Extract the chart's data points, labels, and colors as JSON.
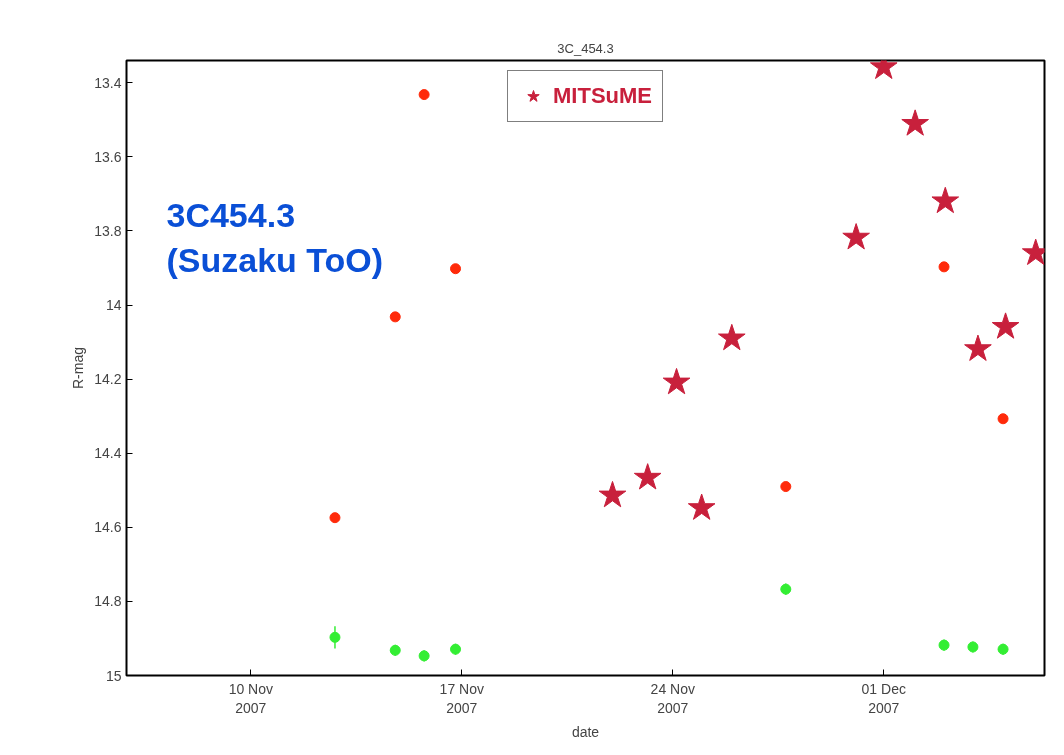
{
  "chart_data": {
    "type": "scatter",
    "title": "3C_454.3",
    "xlabel": "date",
    "ylabel": "R-mag",
    "annotations": [
      "3C454.3\n(Suzaku ToO)"
    ],
    "xlim": [
      "2007-11-05T21:00",
      "2007-12-06T08:00"
    ],
    "ylim": [
      15,
      13.34
    ],
    "xticks": [
      {
        "value": "2007-11-10",
        "label": "10 Nov\n2007"
      },
      {
        "value": "2007-11-17",
        "label": "17 Nov\n2007"
      },
      {
        "value": "2007-11-24",
        "label": "24 Nov\n2007"
      },
      {
        "value": "2007-12-01",
        "label": "01 Dec\n2007"
      }
    ],
    "yticks": [
      13.4,
      13.6,
      13.8,
      14,
      14.2,
      14.4,
      14.6,
      14.8,
      15
    ],
    "grid": false,
    "legend": "top",
    "series": [
      {
        "color": "#ff2a0a",
        "marker": "circle",
        "x": [
          "2007-11-12T19:00",
          "2007-11-14T19:00",
          "2007-11-15T18:00",
          "2007-11-16T19:00",
          "2007-11-27T18:00",
          "2007-12-03T00:00",
          "2007-12-04T23:00"
        ],
        "values": [
          14.574,
          14.032,
          13.432,
          13.902,
          14.49,
          13.897,
          14.307
        ],
        "errors": [
          0.01,
          0.01,
          0.01,
          0.01,
          0.01,
          0.01,
          0.01
        ]
      },
      {
        "color": "#33ee33",
        "marker": "circle",
        "x": [
          "2007-11-12T19:00",
          "2007-11-14T19:00",
          "2007-11-15T18:00",
          "2007-11-16T19:00",
          "2007-11-27T18:00",
          "2007-12-03T00:00",
          "2007-12-03T23:00",
          "2007-12-04T23:00"
        ],
        "values": [
          14.897,
          14.932,
          14.947,
          14.929,
          14.767,
          14.918,
          14.923,
          14.929
        ],
        "errors": [
          0.03,
          0.015,
          0.015,
          0.015,
          0.015,
          0.015,
          0.015,
          0.015
        ]
      },
      {
        "name": "MITSuME",
        "color": "#c8203c",
        "marker": "star",
        "x": [
          "2007-11-22T00:00",
          "2007-11-23T04:00",
          "2007-11-24T03:00",
          "2007-11-24T23:00",
          "2007-11-25T23:00",
          "2007-11-30T02:00",
          "2007-12-01T00:00",
          "2007-12-02T01:00",
          "2007-12-03T01:00",
          "2007-12-04T03:00",
          "2007-12-05T01:00",
          "2007-12-06T01:00"
        ],
        "values": [
          14.514,
          14.466,
          14.209,
          14.548,
          14.09,
          13.818,
          13.358,
          13.511,
          13.72,
          14.119,
          14.059,
          13.86
        ]
      }
    ]
  }
}
